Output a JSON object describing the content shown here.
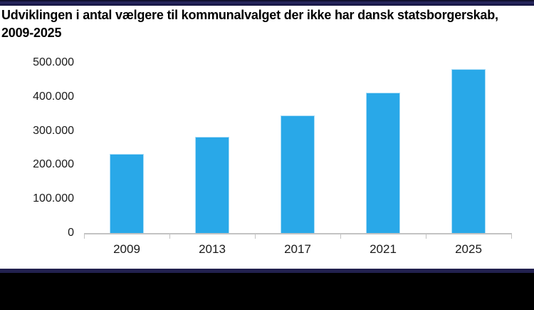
{
  "header": {
    "title": "Udviklingen i antal vælgere til kommunalvalget der ikke har dansk statsborgerskab, 2009-2025"
  },
  "chart_data": {
    "type": "bar",
    "title": "Udviklingen i antal vælgere til kommunalvalget der ikke har dansk statsborgerskab, 2009-2025",
    "categories": [
      "2009",
      "2013",
      "2017",
      "2021",
      "2025"
    ],
    "values": [
      232000,
      283000,
      346000,
      413000,
      482000
    ],
    "xlabel": "",
    "ylabel": "",
    "ylim": [
      0,
      500000
    ],
    "ytick_step": 100000,
    "ytick_labels": [
      "0",
      "100.000",
      "200.000",
      "300.000",
      "400.000",
      "500.000"
    ],
    "grid": false,
    "legend": "none"
  },
  "colors": {
    "bar_color": "#29A8E8",
    "bar_border_color": "#A9DDF7",
    "axis_color": "#C3C3C3",
    "label_color": "#1A1A1A",
    "top_strip_dark": "#08081E",
    "top_strip_mid": "#2A2963",
    "top_strip_dark2": "#10103A",
    "bottom_strip_color": "#21204E",
    "footer_color": "#000000"
  }
}
